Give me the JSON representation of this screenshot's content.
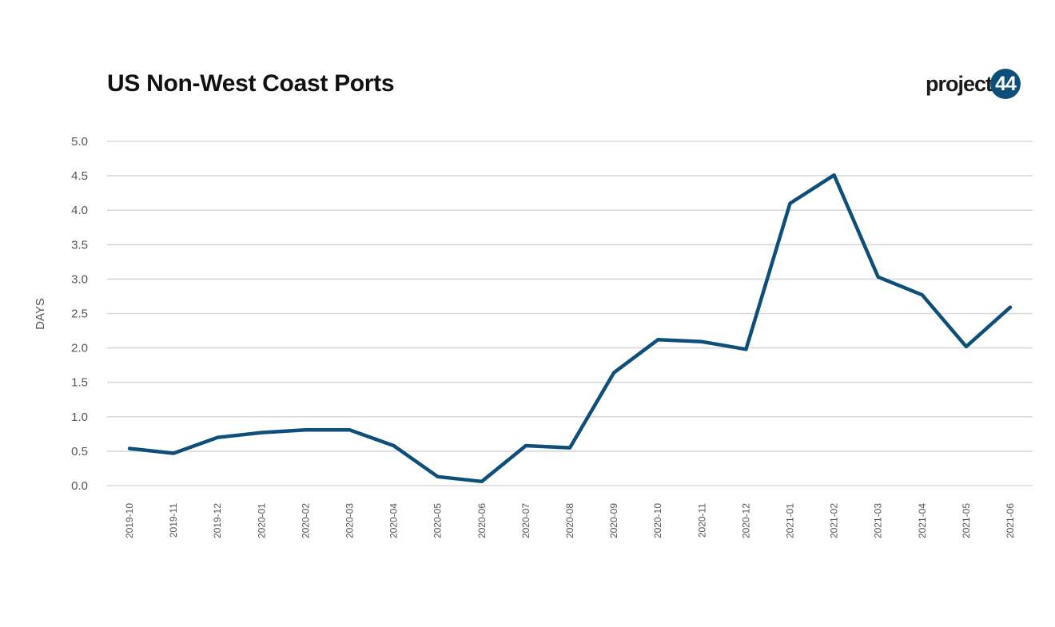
{
  "header": {
    "title": "US Non-West Coast Ports",
    "logo_word": "project",
    "logo_number": "44"
  },
  "colors": {
    "line": "#0e4f7a",
    "grid": "#d9d9d9",
    "logo_circle": "#0e4f7a"
  },
  "chart_data": {
    "type": "line",
    "title": "US Non-West Coast Ports",
    "xlabel": "",
    "ylabel": "DAYS",
    "ylim": [
      0,
      5
    ],
    "yticks": [
      "0.0",
      "0.5",
      "1.0",
      "1.5",
      "2.0",
      "2.5",
      "3.0",
      "3.5",
      "4.0",
      "4.5",
      "5.0"
    ],
    "grid": true,
    "categories": [
      "2019-10",
      "2019-11",
      "2019-12",
      "2020-01",
      "2020-02",
      "2020-03",
      "2020-04",
      "2020-05",
      "2020-06",
      "2020-07",
      "2020-08",
      "2020-09",
      "2020-10",
      "2020-11",
      "2020-12",
      "2021-01",
      "2021-02",
      "2021-03",
      "2021-04",
      "2021-05",
      "2021-06"
    ],
    "series": [
      {
        "values": [
          0.54,
          0.47,
          0.7,
          0.77,
          0.81,
          0.81,
          0.58,
          0.13,
          0.06,
          0.58,
          0.55,
          1.64,
          2.12,
          2.09,
          1.98,
          4.1,
          4.51,
          3.03,
          2.77,
          2.02,
          2.59
        ]
      }
    ]
  }
}
